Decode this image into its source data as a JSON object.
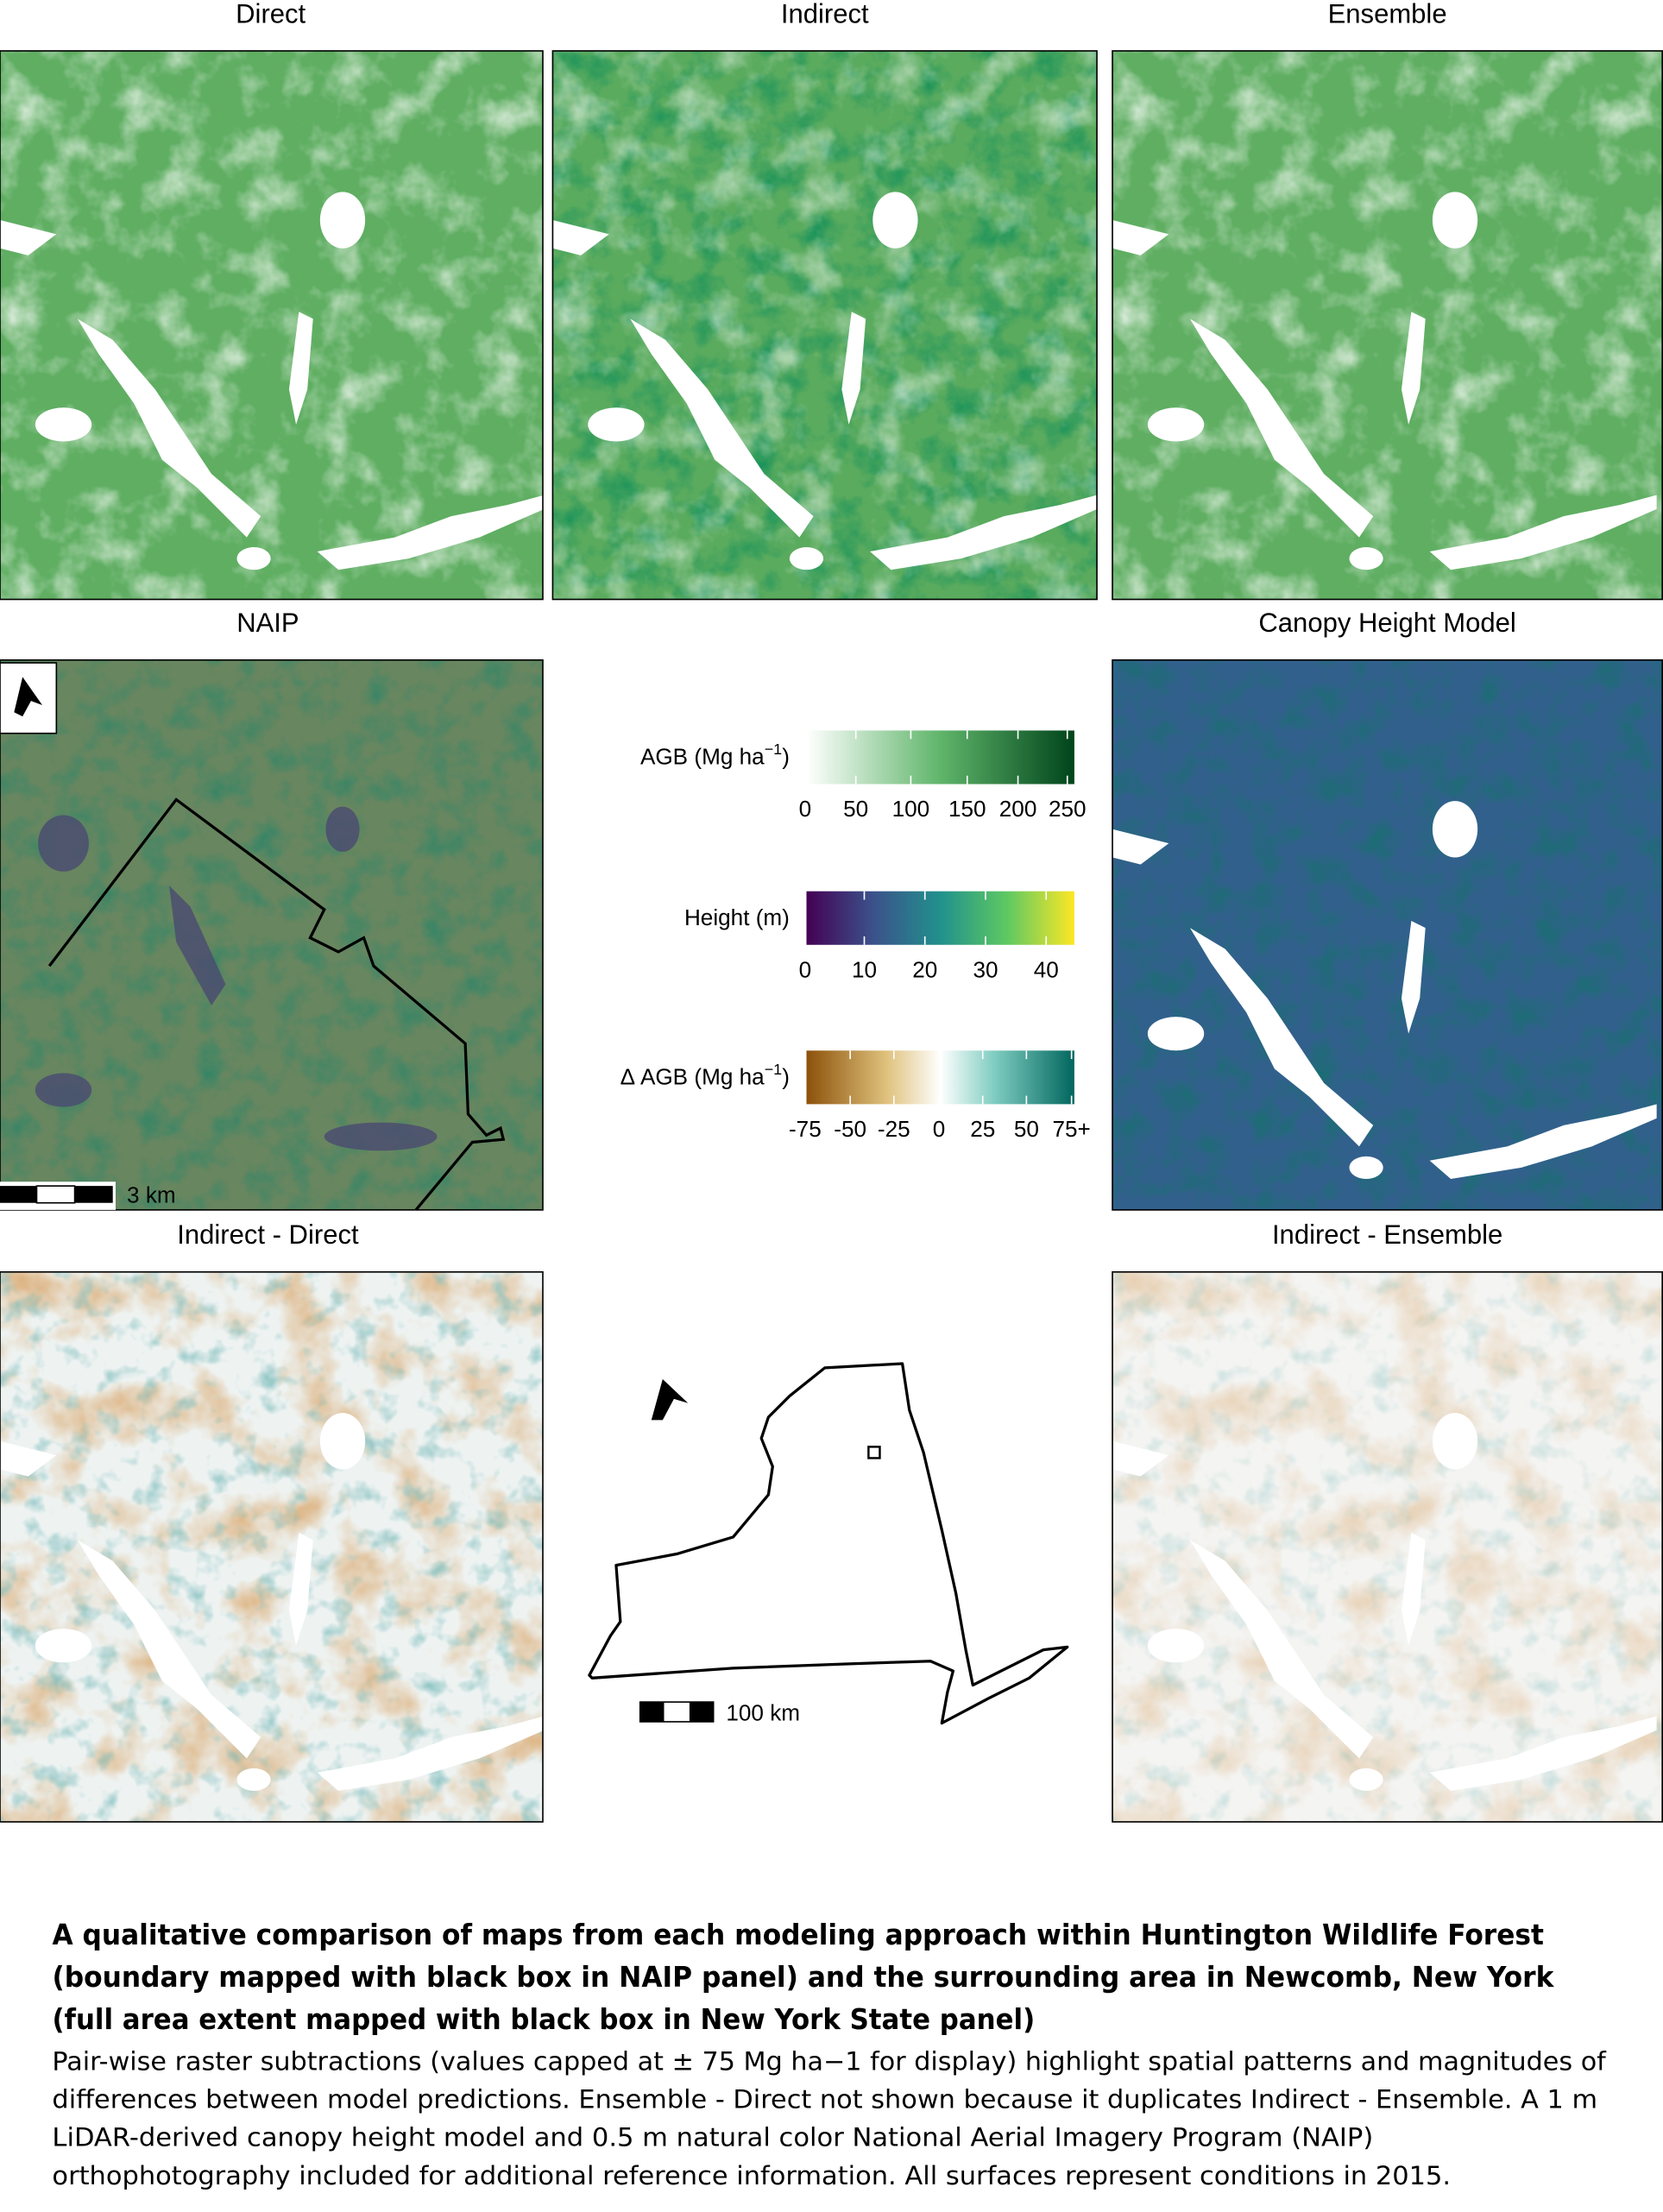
{
  "panels": {
    "direct": "Direct",
    "indirect": "Indirect",
    "ensemble": "Ensemble",
    "naip": "NAIP",
    "chm": "Canopy Height Model",
    "indirect_direct": "Indirect - Direct",
    "indirect_ensemble": "Indirect - Ensemble"
  },
  "naip_scale": "3 km",
  "ny_scale": "100 km",
  "legend": [
    {
      "label": "AGB (Mg ha",
      "sup": "−1",
      "end": ")",
      "ticks": [
        "0",
        "50",
        "100",
        "150",
        "200",
        "250"
      ]
    },
    {
      "label": "Height (m)",
      "ticks": [
        "0",
        "10",
        "20",
        "30",
        "40"
      ]
    },
    {
      "label": "Δ AGB (Mg ha",
      "sup": "−1",
      "end": ")",
      "ticks": [
        "-75",
        "-50",
        "-25",
        "0",
        "25",
        "50",
        "75+"
      ]
    }
  ],
  "caption": {
    "title": [
      "A qualitative comparison of maps from each modeling approach within Huntington Wildlife Forest",
      "(boundary mapped with black box in NAIP panel) and the surrounding area in Newcomb, New York",
      "(full area extent mapped with black box in New York State panel)"
    ],
    "body": [
      "Pair-wise raster subtractions (values capped at ± 75 Mg ha−1 for display) highlight spatial patterns and magnitudes of",
      "differences between model predictions. Ensemble - Direct not shown because it duplicates Indirect - Ensemble. A 1 m",
      "LiDAR-derived canopy height model and 0.5 m natural color National Aerial Imagery Program (NAIP)",
      "orthophotography included for additional reference information. All surfaces represent conditions in 2015."
    ]
  }
}
